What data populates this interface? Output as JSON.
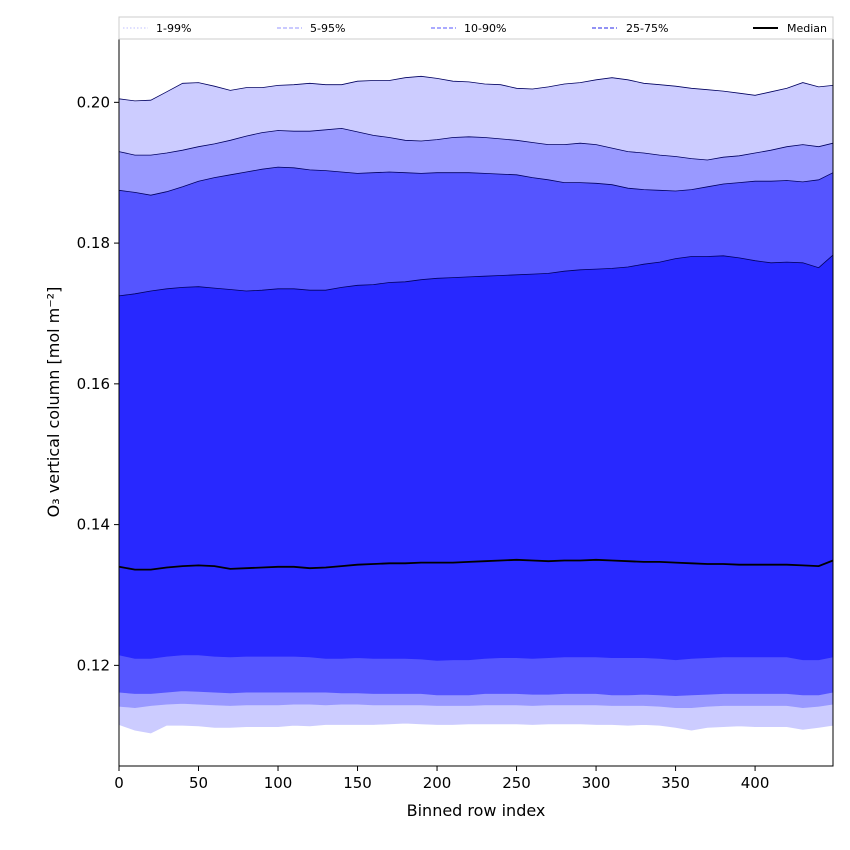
{
  "chart_data": {
    "type": "area",
    "xlabel": "Binned row index",
    "ylabel": "O₃ vertical column [mol m⁻²]",
    "xlim": [
      0,
      449
    ],
    "ylim": [
      0.1057,
      0.209
    ],
    "x_ticks": [
      0,
      50,
      100,
      150,
      200,
      250,
      300,
      350,
      400
    ],
    "x_tick_labels": [
      "0",
      "50",
      "100",
      "150",
      "200",
      "250",
      "300",
      "350",
      "400"
    ],
    "y_ticks": [
      0.12,
      0.14,
      0.16,
      0.18,
      0.2
    ],
    "y_tick_labels": [
      "0.12",
      "0.14",
      "0.16",
      "0.18",
      "0.20"
    ],
    "legend_position": "top (full width)",
    "grid": false,
    "x": [
      0,
      10,
      20,
      30,
      40,
      50,
      60,
      70,
      80,
      90,
      100,
      110,
      120,
      130,
      140,
      150,
      160,
      170,
      180,
      190,
      200,
      210,
      220,
      230,
      240,
      250,
      260,
      270,
      280,
      290,
      300,
      310,
      320,
      330,
      340,
      350,
      360,
      370,
      380,
      390,
      400,
      410,
      420,
      430,
      440,
      449
    ],
    "bands": [
      {
        "name": "1-99%",
        "color": "#ccccff",
        "lower": [
          0.1116,
          0.1108,
          0.1104,
          0.1115,
          0.1115,
          0.1114,
          0.1112,
          0.1112,
          0.1113,
          0.1113,
          0.1113,
          0.1115,
          0.1114,
          0.1116,
          0.1116,
          0.1116,
          0.1116,
          0.1117,
          0.1118,
          0.1117,
          0.1116,
          0.1116,
          0.1117,
          0.1117,
          0.1117,
          0.1117,
          0.1116,
          0.1117,
          0.1117,
          0.1117,
          0.1116,
          0.1116,
          0.1115,
          0.1116,
          0.1115,
          0.1112,
          0.1108,
          0.1112,
          0.1113,
          0.1114,
          0.1113,
          0.1113,
          0.1113,
          0.1109,
          0.1112,
          0.1115
        ],
        "upper": [
          0.2005,
          0.2002,
          0.2003,
          0.2015,
          0.2027,
          0.2028,
          0.2023,
          0.2017,
          0.2021,
          0.2021,
          0.2024,
          0.2025,
          0.2027,
          0.2025,
          0.2025,
          0.203,
          0.2031,
          0.2031,
          0.2035,
          0.2037,
          0.2034,
          0.203,
          0.2029,
          0.2026,
          0.2025,
          0.202,
          0.2019,
          0.2022,
          0.2026,
          0.2028,
          0.2032,
          0.2035,
          0.2032,
          0.2027,
          0.2025,
          0.2023,
          0.202,
          0.2018,
          0.2016,
          0.2013,
          0.201,
          0.2015,
          0.202,
          0.2028,
          0.2022,
          0.2024
        ]
      },
      {
        "name": "5-95%",
        "color": "#9999ff",
        "lower": [
          0.1142,
          0.114,
          0.1143,
          0.1145,
          0.1146,
          0.1145,
          0.1144,
          0.1143,
          0.1144,
          0.1144,
          0.1144,
          0.1145,
          0.1145,
          0.1144,
          0.1145,
          0.1145,
          0.1144,
          0.1144,
          0.1144,
          0.1144,
          0.1143,
          0.1143,
          0.1143,
          0.1144,
          0.1144,
          0.1144,
          0.1143,
          0.1144,
          0.1144,
          0.1144,
          0.1144,
          0.1143,
          0.1143,
          0.1143,
          0.1142,
          0.114,
          0.114,
          0.1142,
          0.1143,
          0.1143,
          0.1143,
          0.1143,
          0.1143,
          0.114,
          0.1142,
          0.1145
        ],
        "upper": [
          0.193,
          0.1925,
          0.1925,
          0.1928,
          0.1932,
          0.1937,
          0.1941,
          0.1946,
          0.1952,
          0.1957,
          0.196,
          0.1959,
          0.1959,
          0.1961,
          0.1963,
          0.1958,
          0.1953,
          0.195,
          0.1946,
          0.1945,
          0.1947,
          0.195,
          0.1951,
          0.195,
          0.1948,
          0.1946,
          0.1943,
          0.194,
          0.194,
          0.1942,
          0.194,
          0.1935,
          0.193,
          0.1928,
          0.1925,
          0.1923,
          0.192,
          0.1918,
          0.1922,
          0.1924,
          0.1928,
          0.1932,
          0.1937,
          0.194,
          0.1937,
          0.1942
        ]
      },
      {
        "name": "10-90%",
        "color": "#5555ff",
        "lower": [
          0.1162,
          0.116,
          0.116,
          0.1162,
          0.1164,
          0.1163,
          0.1162,
          0.1161,
          0.1162,
          0.1162,
          0.1162,
          0.1162,
          0.1162,
          0.1162,
          0.1161,
          0.1161,
          0.116,
          0.116,
          0.116,
          0.116,
          0.1158,
          0.1158,
          0.1158,
          0.116,
          0.116,
          0.116,
          0.1159,
          0.1159,
          0.116,
          0.116,
          0.116,
          0.1158,
          0.1158,
          0.1159,
          0.1158,
          0.1157,
          0.1158,
          0.1159,
          0.116,
          0.116,
          0.116,
          0.116,
          0.116,
          0.1158,
          0.1158,
          0.1162
        ],
        "upper": [
          0.1875,
          0.1872,
          0.1868,
          0.1873,
          0.188,
          0.1888,
          0.1893,
          0.1897,
          0.1901,
          0.1905,
          0.1908,
          0.1907,
          0.1904,
          0.1903,
          0.1901,
          0.1899,
          0.19,
          0.1901,
          0.19,
          0.1899,
          0.19,
          0.19,
          0.19,
          0.1899,
          0.1898,
          0.1897,
          0.1893,
          0.189,
          0.1886,
          0.1886,
          0.1885,
          0.1883,
          0.1878,
          0.1876,
          0.1875,
          0.1874,
          0.1876,
          0.188,
          0.1884,
          0.1886,
          0.1888,
          0.1888,
          0.1889,
          0.1887,
          0.189,
          0.19
        ]
      },
      {
        "name": "25-75%",
        "color": "#2828ff",
        "lower": [
          0.1215,
          0.121,
          0.121,
          0.1213,
          0.1215,
          0.1215,
          0.1213,
          0.1212,
          0.1213,
          0.1213,
          0.1213,
          0.1213,
          0.1212,
          0.121,
          0.121,
          0.1211,
          0.121,
          0.121,
          0.121,
          0.1209,
          0.1207,
          0.1208,
          0.1208,
          0.121,
          0.1211,
          0.1211,
          0.121,
          0.1211,
          0.1212,
          0.1212,
          0.1212,
          0.1211,
          0.1211,
          0.1211,
          0.121,
          0.1208,
          0.121,
          0.1211,
          0.1212,
          0.1212,
          0.1212,
          0.1212,
          0.1212,
          0.1208,
          0.1208,
          0.1212
        ],
        "upper": [
          0.1725,
          0.1728,
          0.1732,
          0.1735,
          0.1737,
          0.1738,
          0.1736,
          0.1734,
          0.1732,
          0.1733,
          0.1735,
          0.1735,
          0.1733,
          0.1733,
          0.1737,
          0.174,
          0.1741,
          0.1744,
          0.1745,
          0.1748,
          0.175,
          0.1751,
          0.1752,
          0.1753,
          0.1754,
          0.1755,
          0.1756,
          0.1757,
          0.176,
          0.1762,
          0.1763,
          0.1764,
          0.1766,
          0.177,
          0.1773,
          0.1778,
          0.1781,
          0.1781,
          0.1782,
          0.1779,
          0.1775,
          0.1772,
          0.1773,
          0.1772,
          0.1765,
          0.1783
        ]
      }
    ],
    "median": {
      "name": "Median",
      "color": "#000000",
      "values": [
        0.134,
        0.1336,
        0.1336,
        0.1339,
        0.1341,
        0.1342,
        0.1341,
        0.1337,
        0.1338,
        0.1339,
        0.134,
        0.134,
        0.1338,
        0.1339,
        0.1341,
        0.1343,
        0.1344,
        0.1345,
        0.1345,
        0.1346,
        0.1346,
        0.1346,
        0.1347,
        0.1348,
        0.1349,
        0.135,
        0.1349,
        0.1348,
        0.1349,
        0.1349,
        0.135,
        0.1349,
        0.1348,
        0.1347,
        0.1347,
        0.1346,
        0.1345,
        0.1344,
        0.1344,
        0.1343,
        0.1343,
        0.1343,
        0.1343,
        0.1342,
        0.1341,
        0.1349
      ]
    },
    "legend": [
      {
        "label": "1-99%",
        "color": "#ccccff",
        "style": "dotted"
      },
      {
        "label": "5-95%",
        "color": "#aaaaff",
        "style": "dashed"
      },
      {
        "label": "10-90%",
        "color": "#7777ff",
        "style": "dashed"
      },
      {
        "label": "25-75%",
        "color": "#5050ee",
        "style": "dashed"
      },
      {
        "label": "Median",
        "color": "#000000",
        "style": "solid"
      }
    ]
  }
}
